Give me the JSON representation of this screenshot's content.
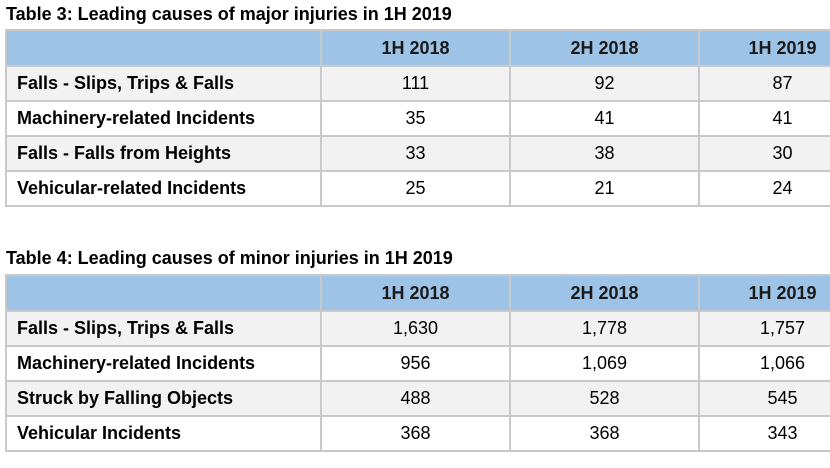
{
  "table3": {
    "caption": "Table 3: Leading causes of major injuries in 1H 2019",
    "headers": [
      "",
      "1H 2018",
      "2H 2018",
      "1H 2019"
    ],
    "rows": [
      {
        "label": "Falls - Slips, Trips & Falls",
        "values": [
          "111",
          "92",
          "87"
        ]
      },
      {
        "label": "Machinery-related Incidents",
        "values": [
          "35",
          "41",
          "41"
        ]
      },
      {
        "label": "Falls - Falls from Heights",
        "values": [
          "33",
          "38",
          "30"
        ]
      },
      {
        "label": "Vehicular-related Incidents",
        "values": [
          "25",
          "21",
          "24"
        ]
      }
    ]
  },
  "table4": {
    "caption": "Table 4: Leading causes of minor injuries in 1H 2019",
    "headers": [
      "",
      "1H 2018",
      "2H 2018",
      "1H 2019"
    ],
    "rows": [
      {
        "label": "Falls - Slips, Trips & Falls",
        "values": [
          "1,630",
          "1,778",
          "1,757"
        ]
      },
      {
        "label": "Machinery-related Incidents",
        "values": [
          "956",
          "1,069",
          "1,066"
        ]
      },
      {
        "label": "Struck by Falling Objects",
        "values": [
          "488",
          "528",
          "545"
        ]
      },
      {
        "label": "Vehicular Incidents",
        "values": [
          "368",
          "368",
          "343"
        ]
      }
    ]
  },
  "colors": {
    "header_fill": "#9dc3e6",
    "odd_row_fill": "#f2f2f2",
    "border": "#c9c9c9"
  }
}
